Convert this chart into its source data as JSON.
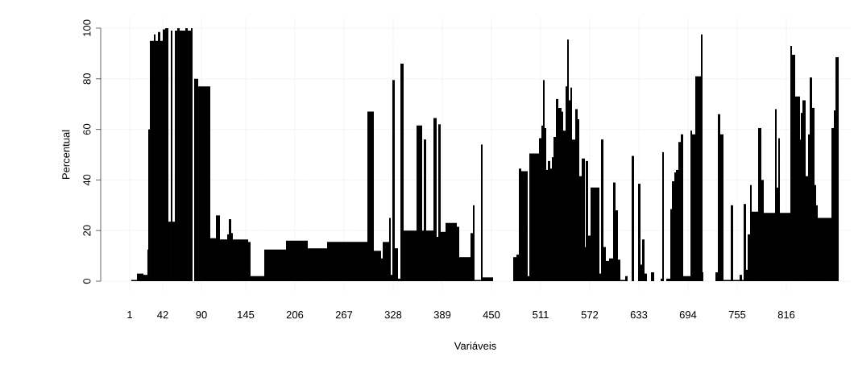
{
  "chart_data": {
    "type": "histogram",
    "xlabel": "Variáveis",
    "ylabel": "Percentual",
    "color": "#000000",
    "bins": [
      3,
      10,
      18,
      23,
      24,
      26,
      31,
      33,
      36,
      39,
      42,
      45,
      49,
      52,
      54,
      57,
      60,
      63,
      70,
      73,
      77,
      79,
      81,
      86,
      101,
      108,
      113,
      122,
      124,
      127,
      129,
      148,
      151,
      168,
      195,
      222,
      246,
      296,
      304,
      313,
      315,
      323,
      325,
      327,
      330,
      334,
      337,
      341,
      357,
      364,
      366,
      369,
      378,
      382,
      384,
      387,
      393,
      407,
      410,
      424,
      427,
      429,
      437,
      439,
      452,
      477,
      481,
      484,
      487,
      495,
      497,
      509,
      512,
      514,
      516,
      518,
      520,
      523,
      525,
      527,
      530,
      533,
      537,
      539,
      542,
      544,
      546,
      548,
      550,
      554,
      557,
      559,
      562,
      566,
      567,
      570,
      573,
      584,
      586,
      589,
      592,
      596,
      601,
      604,
      607,
      610,
      616,
      619,
      624,
      627,
      632,
      635,
      637,
      640,
      643,
      648,
      652,
      660,
      662,
      664,
      667,
      672,
      674,
      677,
      679,
      682,
      685,
      688,
      697,
      699,
      703,
      710,
      712,
      713,
      728,
      731,
      734,
      738,
      747,
      750,
      758,
      761,
      763,
      766,
      768,
      771,
      773,
      781,
      785,
      788,
      802,
      804,
      806,
      808,
      821,
      823,
      827,
      833,
      834,
      836,
      840,
      843,
      845,
      848,
      851,
      853,
      855,
      872,
      875,
      877,
      881
    ],
    "values": [
      0.5,
      3,
      2.5,
      12.5,
      60,
      95,
      97.5,
      95,
      98.5,
      95,
      99.5,
      100,
      23.5,
      99,
      23.5,
      99,
      100,
      99,
      100,
      99,
      100,
      0,
      80,
      77,
      17,
      26,
      16.5,
      18.5,
      24.5,
      19,
      16.5,
      15.5,
      2,
      12.5,
      16,
      13,
      15.5,
      67,
      12,
      9,
      15.5,
      25,
      2.5,
      79.5,
      13,
      1,
      86,
      20,
      61.5,
      20,
      56,
      20,
      64.5,
      17.5,
      62,
      19.5,
      23,
      21.5,
      9.5,
      19,
      30,
      0.5,
      54,
      1.5,
      0,
      9.5,
      10.5,
      44.5,
      43.5,
      2,
      50.5,
      56.5,
      61.5,
      79.5,
      60.5,
      44,
      47.5,
      44.5,
      49,
      57,
      72,
      68.5,
      67,
      59.5,
      77,
      95.5,
      71.5,
      76.5,
      56,
      68,
      64,
      41.5,
      48.5,
      13.5,
      47.5,
      18,
      37,
      3,
      56,
      13.5,
      8,
      9,
      39,
      28,
      8.5,
      0.5,
      2,
      0,
      49.5,
      0,
      38.5,
      6.5,
      16.5,
      3,
      0,
      3.5,
      0,
      1,
      51,
      0,
      1,
      28.5,
      39.5,
      43,
      44,
      55,
      58,
      2,
      59.5,
      58,
      81,
      97.5,
      3.5,
      0,
      3.5,
      66,
      58,
      0.5,
      30,
      0.5,
      2.5,
      0.5,
      30.5,
      4.5,
      18.5,
      38,
      27.5,
      60.5,
      40,
      27,
      68,
      37,
      56.5,
      27,
      93,
      89.5,
      73,
      56,
      66.5,
      71.5,
      41.5,
      58,
      80.5,
      68.5,
      38,
      30,
      25,
      60.5,
      67.5,
      88.5
    ],
    "xlim": [
      -35,
      895
    ],
    "ylim": [
      -4,
      104
    ],
    "xticks": [
      1,
      42,
      90,
      145,
      206,
      267,
      328,
      389,
      450,
      511,
      572,
      633,
      694,
      755,
      816
    ],
    "yticks": [
      0,
      20,
      40,
      60,
      80,
      100
    ],
    "grid": true,
    "tick_labels": "xy"
  }
}
